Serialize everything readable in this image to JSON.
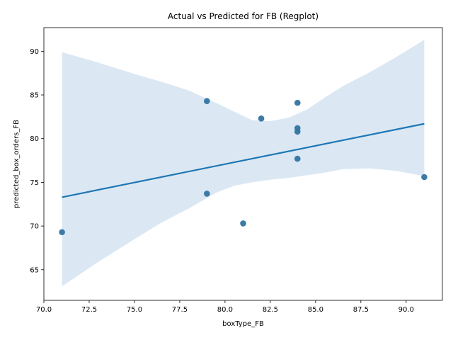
{
  "chart_data": {
    "type": "scatter",
    "title": "Actual vs Predicted for FB (Regplot)",
    "xlabel": "boxType_FB",
    "ylabel": "predicted_box_orders_FB",
    "xlim": [
      70,
      92
    ],
    "ylim": [
      61.5,
      92.7
    ],
    "x_ticks": [
      "70.0",
      "72.5",
      "75.0",
      "77.5",
      "80.0",
      "82.5",
      "85.0",
      "87.5",
      "90.0"
    ],
    "y_ticks": [
      "65",
      "70",
      "75",
      "80",
      "85",
      "90"
    ],
    "points": [
      {
        "x": 71,
        "y": 69.3
      },
      {
        "x": 79,
        "y": 84.3
      },
      {
        "x": 79,
        "y": 73.7
      },
      {
        "x": 81,
        "y": 70.3
      },
      {
        "x": 82,
        "y": 82.3
      },
      {
        "x": 84,
        "y": 84.1
      },
      {
        "x": 84,
        "y": 81.2
      },
      {
        "x": 84,
        "y": 80.8
      },
      {
        "x": 84,
        "y": 77.7
      },
      {
        "x": 91,
        "y": 75.6
      }
    ],
    "regression_line": {
      "x": [
        71,
        91
      ],
      "y": [
        73.3,
        81.7
      ]
    },
    "confidence_band": {
      "x": [
        71,
        73,
        75,
        76.5,
        78,
        79.5,
        80.5,
        81.5,
        82.5,
        83.5,
        84.5,
        85.5,
        86.5,
        88,
        89.5,
        91
      ],
      "upper": [
        89.9,
        88.7,
        87.4,
        86.5,
        85.5,
        84.1,
        83.1,
        82.1,
        82.0,
        82.4,
        83.3,
        84.7,
        86.0,
        87.6,
        89.4,
        91.3
      ],
      "lower": [
        63.1,
        65.9,
        68.5,
        70.4,
        72.0,
        73.8,
        74.6,
        75.0,
        75.3,
        75.5,
        75.8,
        76.1,
        76.5,
        76.6,
        76.3,
        75.7
      ]
    },
    "grid": false,
    "colors": {
      "point": "#3174a1",
      "line": "#1f77b4",
      "band": "#cfe0ef"
    }
  }
}
